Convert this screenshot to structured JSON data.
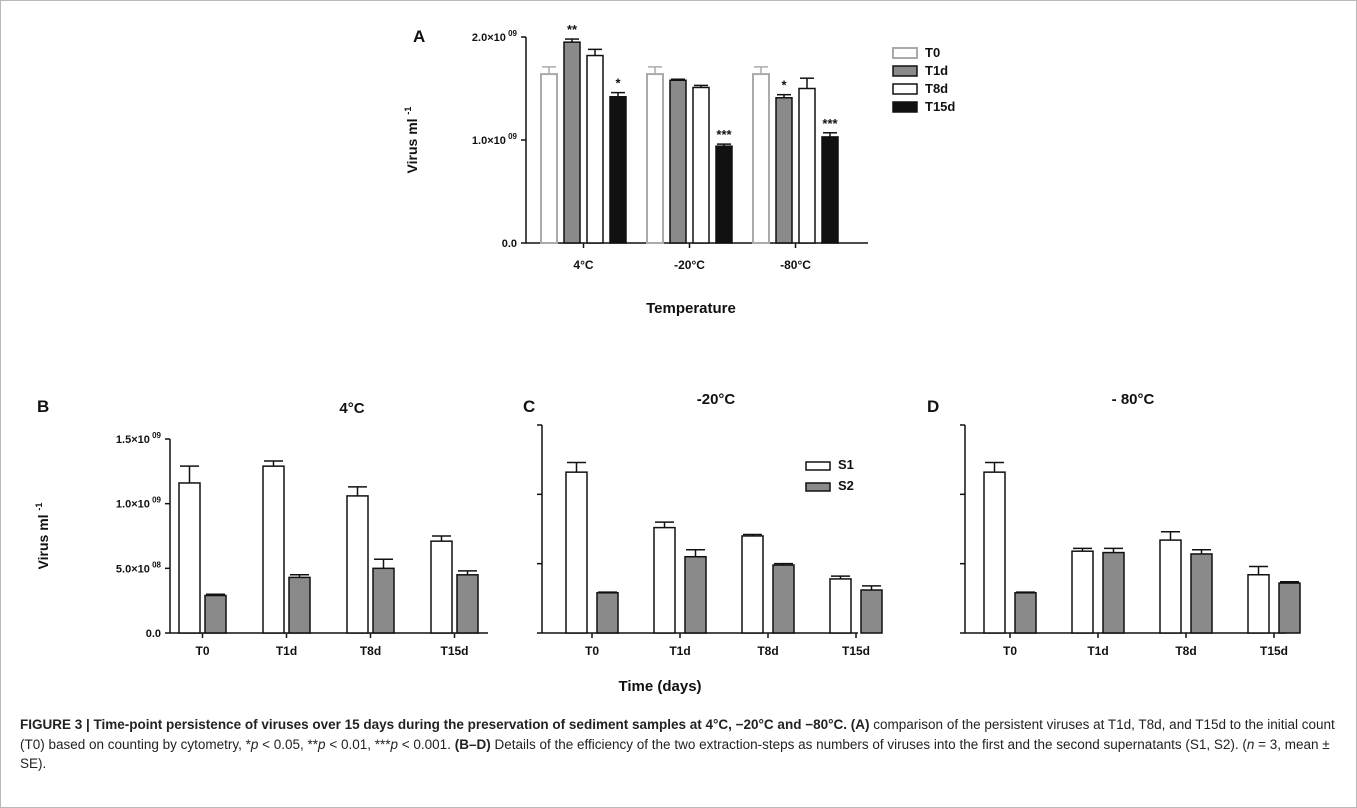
{
  "chart_data": [
    {
      "panel": "A",
      "type": "bar",
      "title": "",
      "xlabel": "Temperature",
      "ylabel": "Virus ml -1",
      "ylim": [
        0,
        2000000000.0
      ],
      "yticks": [
        {
          "value": 0,
          "label": "0.0"
        },
        {
          "value": 1000000000.0,
          "label": "1.0×10",
          "exp": "09"
        },
        {
          "value": 2000000000.0,
          "label": "2.0×10",
          "exp": "09"
        }
      ],
      "categories": [
        "4°C",
        "-20°C",
        "-80°C"
      ],
      "series": [
        {
          "name": "T0",
          "style": "outline-gray",
          "values": [
            1640000000.0,
            1640000000.0,
            1640000000.0
          ],
          "err": [
            70000000.0,
            70000000.0,
            70000000.0
          ],
          "sig": [
            "",
            "",
            ""
          ]
        },
        {
          "name": "T1d",
          "style": "gray",
          "values": [
            1950000000.0,
            1580000000.0,
            1410000000.0
          ],
          "err": [
            30000000.0,
            10000000.0,
            30000000.0
          ],
          "sig": [
            "**",
            "",
            "*"
          ]
        },
        {
          "name": "T8d",
          "style": "white",
          "values": [
            1820000000.0,
            1510000000.0,
            1500000000.0
          ],
          "err": [
            60000000.0,
            20000000.0,
            100000000.0
          ],
          "sig": [
            "",
            "",
            ""
          ]
        },
        {
          "name": "T15d",
          "style": "black",
          "values": [
            1420000000.0,
            940000000.0,
            1030000000.0
          ],
          "err": [
            40000000.0,
            20000000.0,
            40000000.0
          ],
          "sig": [
            "*",
            "***",
            "***"
          ]
        }
      ],
      "legend_position": "right"
    },
    {
      "panel": "B",
      "type": "bar",
      "title": "4°C",
      "xlabel": "",
      "ylabel": "Virus ml -1",
      "ylim": [
        0,
        1500000000.0
      ],
      "yticks": [
        {
          "value": 0,
          "label": "0.0"
        },
        {
          "value": 500000000.0,
          "label": "5.0×10",
          "exp": "08"
        },
        {
          "value": 1000000000.0,
          "label": "1.0×10",
          "exp": "09"
        },
        {
          "value": 1500000000.0,
          "label": "1.5×10",
          "exp": "09"
        }
      ],
      "categories": [
        "T0",
        "T1d",
        "T8d",
        "T15d"
      ],
      "series": [
        {
          "name": "S1",
          "style": "white",
          "values": [
            1160000000.0,
            1290000000.0,
            1060000000.0,
            710000000.0
          ],
          "err": [
            130000000.0,
            40000000.0,
            70000000.0,
            40000000.0
          ]
        },
        {
          "name": "S2",
          "style": "gray",
          "values": [
            290000000.0,
            430000000.0,
            500000000.0,
            450000000.0
          ],
          "err": [
            10000000.0,
            20000000.0,
            70000000.0,
            30000000.0
          ]
        }
      ]
    },
    {
      "panel": "C",
      "type": "bar",
      "title": "-20°C",
      "xlabel": "Time (days)",
      "ylabel": "",
      "ylim": [
        0,
        1500000000.0
      ],
      "yticks": [],
      "categories": [
        "T0",
        "T1d",
        "T8d",
        "T15d"
      ],
      "series": [
        {
          "name": "S1",
          "style": "white",
          "values": [
            1160000000.0,
            760000000.0,
            700000000.0,
            390000000.0
          ],
          "err": [
            70000000.0,
            40000000.0,
            10000000.0,
            20000000.0
          ]
        },
        {
          "name": "S2",
          "style": "gray",
          "values": [
            290000000.0,
            550000000.0,
            490000000.0,
            310000000.0
          ],
          "err": [
            5000000.0,
            50000000.0,
            10000000.0,
            30000000.0
          ]
        }
      ],
      "legend_position": "top-right"
    },
    {
      "panel": "D",
      "type": "bar",
      "title": "- 80°C",
      "xlabel": "",
      "ylabel": "",
      "ylim": [
        0,
        1500000000.0
      ],
      "yticks": [],
      "categories": [
        "T0",
        "T1d",
        "T8d",
        "T15d"
      ],
      "series": [
        {
          "name": "S1",
          "style": "white",
          "values": [
            1160000000.0,
            590000000.0,
            670000000.0,
            420000000.0
          ],
          "err": [
            70000000.0,
            20000000.0,
            60000000.0,
            60000000.0
          ]
        },
        {
          "name": "S2",
          "style": "gray",
          "values": [
            290000000.0,
            580000000.0,
            570000000.0,
            360000000.0
          ],
          "err": [
            5000000.0,
            30000000.0,
            30000000.0,
            10000000.0
          ]
        }
      ]
    }
  ],
  "caption": {
    "label": "FIGURE 3 | Time-point persistence of viruses over 15 days during the preservation of sediment samples at 4°C, −20°C and −80°C.",
    "part_a_label": "(A)",
    "part_a_text1": "comparison of the persistent viruses at T1d, T8d, and T15d to the initial count (T0) based on counting by cytometry, *",
    "part_a_text2": " < 0.05, **",
    "part_a_text3": " < 0.01, ***",
    "part_a_text4": " < 0.001.",
    "p": "p",
    "part_bd_label": "(B–D)",
    "part_bd_text1": "Details of the efficiency of the two extraction-steps as numbers of viruses into the first and the second supernatants (S1, S2). (",
    "n": "n",
    "part_bd_text2": " = 3, mean ± SE)."
  },
  "colors": {
    "gray_fill": "#8a8a8a",
    "black_fill": "#111111",
    "outline_gray": "#aaaaaa",
    "axis": "#111111"
  }
}
